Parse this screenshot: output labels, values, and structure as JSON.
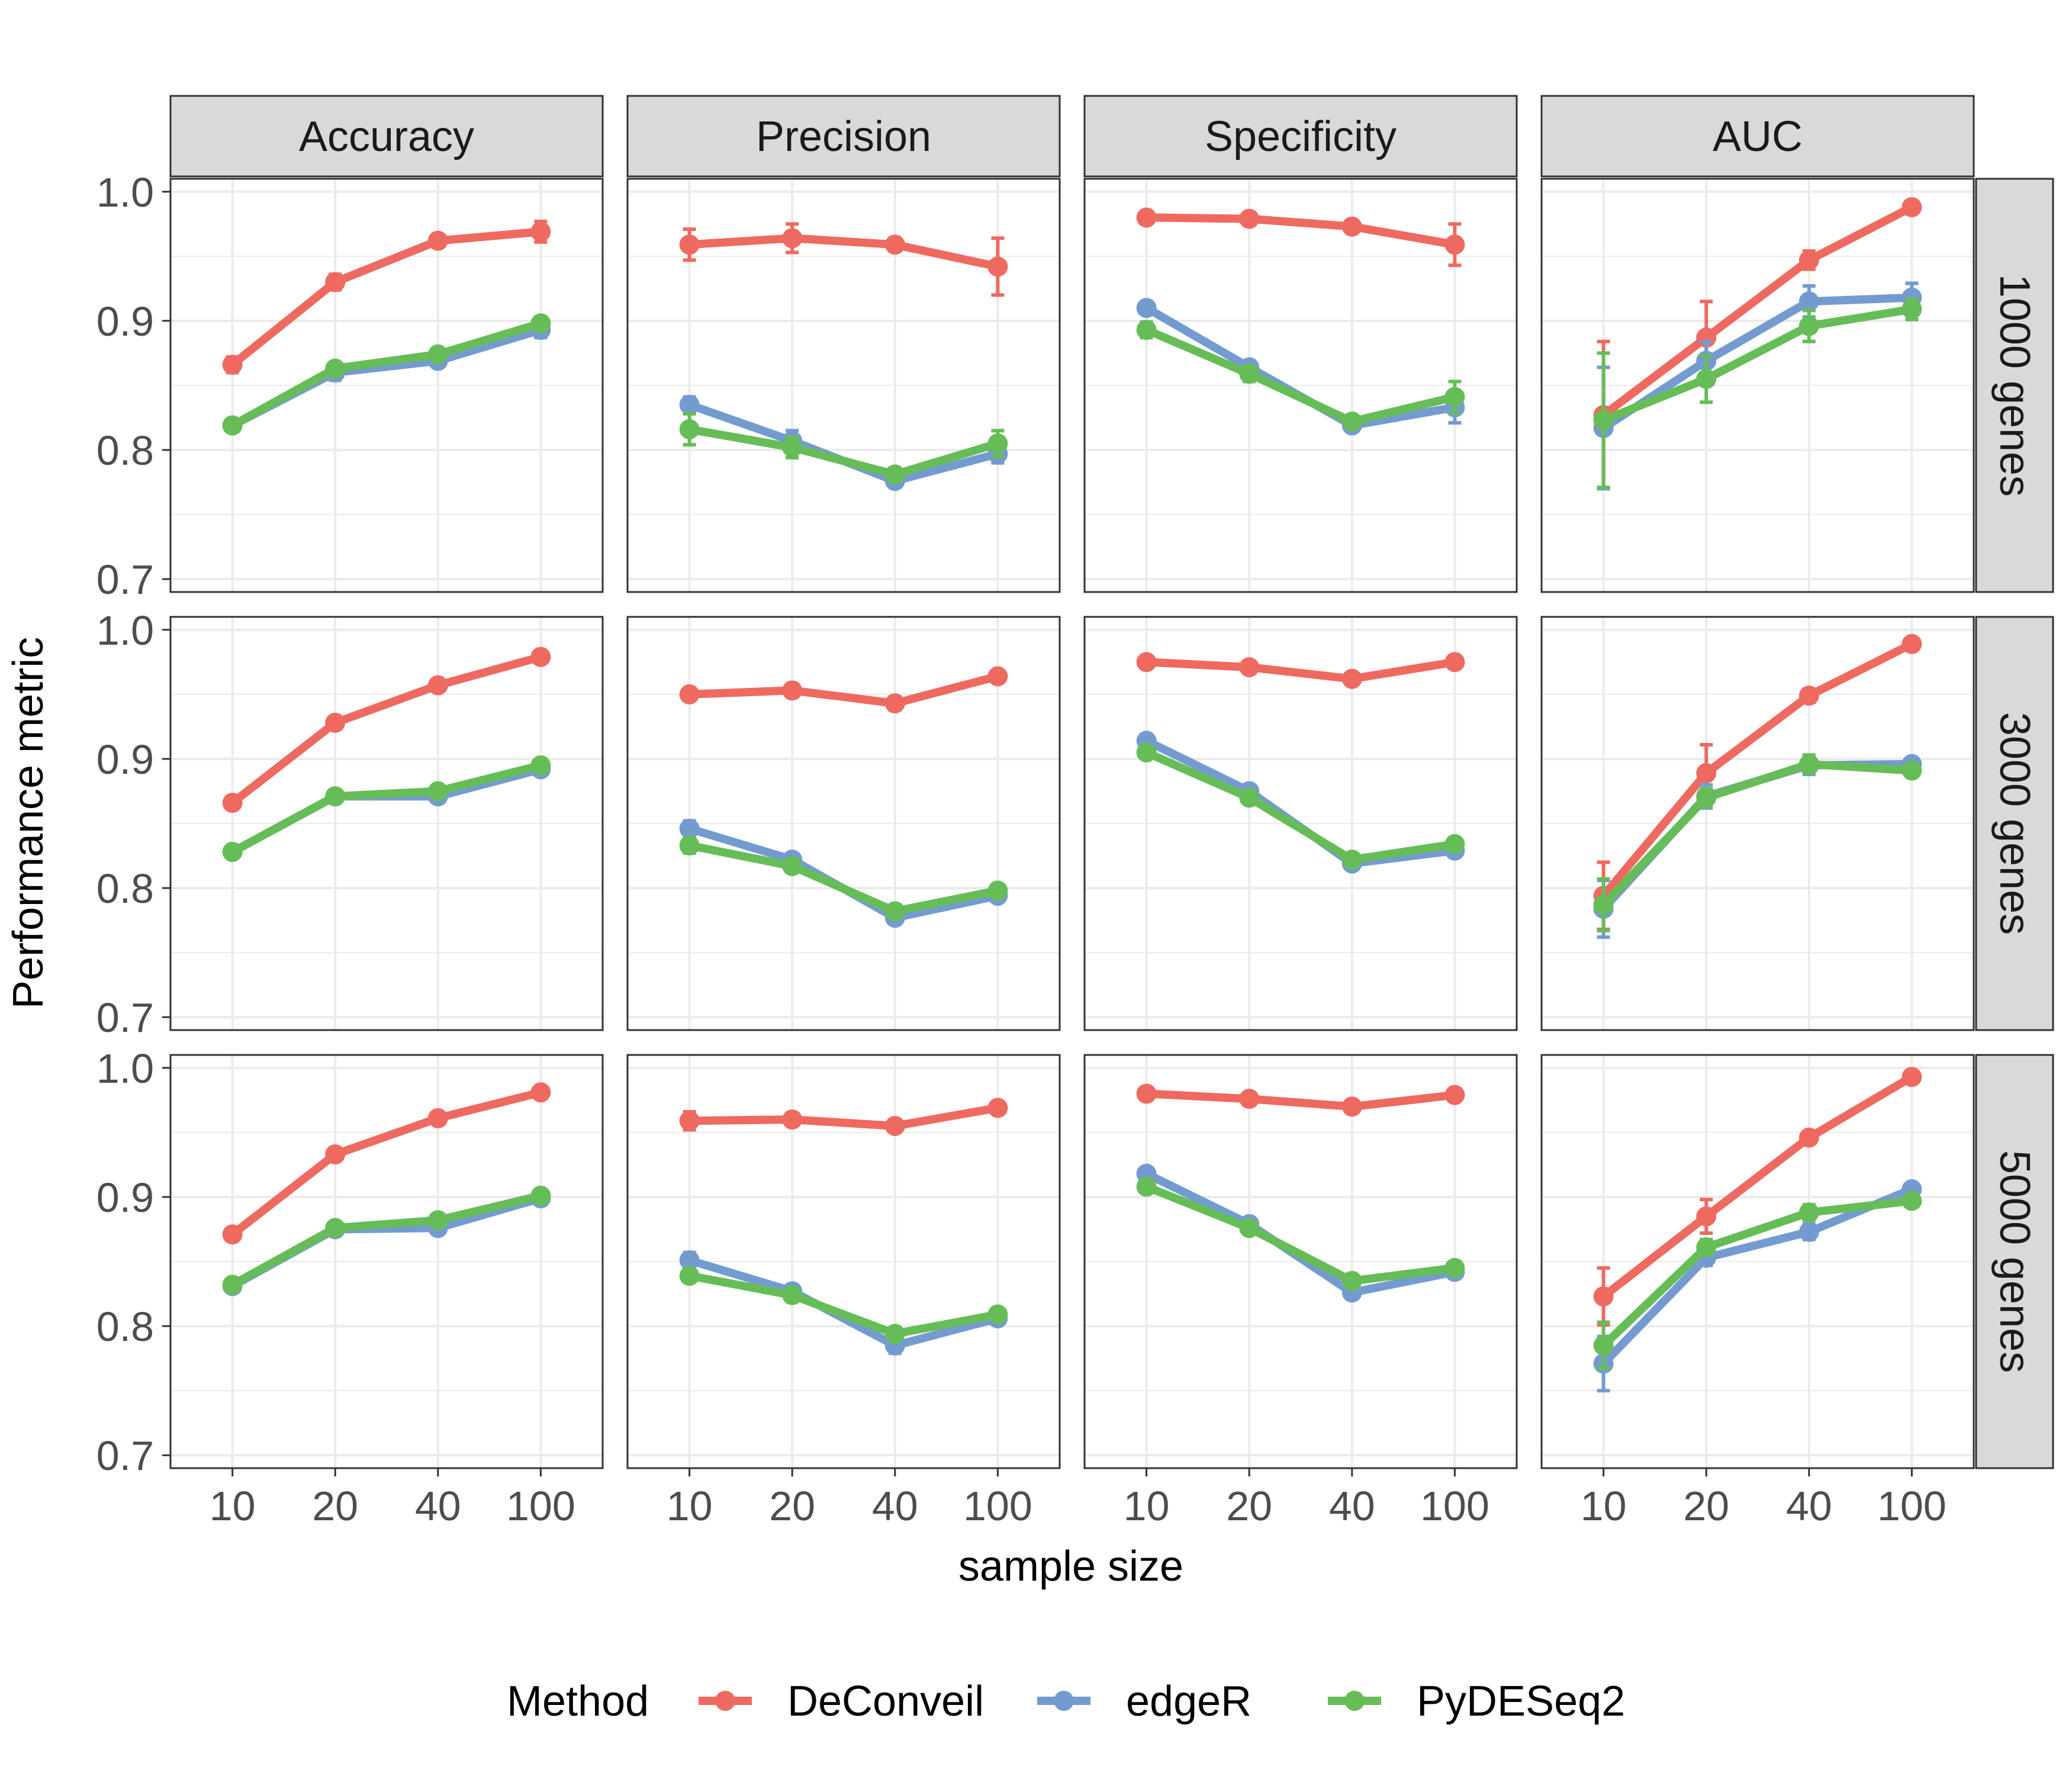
{
  "chart_data": {
    "type": "line",
    "layout": "facet-grid",
    "x": [
      "10",
      "20",
      "40",
      "100"
    ],
    "xlabel": "sample size",
    "ylabel": "Performance metric",
    "ylim": [
      0.69,
      1.01
    ],
    "yticks": [
      "0.7",
      "0.8",
      "0.9",
      "1.0"
    ],
    "ytick_values": [
      0.7,
      0.8,
      0.9,
      1.0
    ],
    "grid": true,
    "columns": [
      "Accuracy",
      "Precision",
      "Specificity",
      "AUC"
    ],
    "rows": [
      "1000 genes",
      "3000 genes",
      "5000 genes"
    ],
    "legend": {
      "title": "Method",
      "position": "bottom",
      "entries": [
        "DeConveil",
        "edgeR",
        "PyDESeq2"
      ]
    },
    "colors": {
      "DeConveil": "#EE6A60",
      "edgeR": "#739BD0",
      "PyDESeq2": "#66BD57"
    },
    "panels": [
      {
        "row": "1000 genes",
        "column": "Accuracy",
        "series": [
          {
            "name": "DeConveil",
            "values": [
              0.866,
              0.93,
              0.962,
              0.969
            ],
            "errors": [
              0.006,
              0.006,
              0.004,
              0.008
            ]
          },
          {
            "name": "edgeR",
            "values": [
              0.819,
              0.86,
              0.869,
              0.893
            ],
            "errors": [
              0.004,
              0.006,
              0.004,
              0.006
            ]
          },
          {
            "name": "PyDESeq2",
            "values": [
              0.819,
              0.863,
              0.874,
              0.898
            ],
            "errors": [
              0.004,
              0.004,
              0.004,
              0.005
            ]
          }
        ]
      },
      {
        "row": "1000 genes",
        "column": "Precision",
        "series": [
          {
            "name": "DeConveil",
            "values": [
              0.959,
              0.964,
              0.959,
              0.942
            ],
            "errors": [
              0.012,
              0.011,
              0.005,
              0.022
            ]
          },
          {
            "name": "edgeR",
            "values": [
              0.835,
              0.807,
              0.776,
              0.797
            ],
            "errors": [
              0.006,
              0.008,
              0.004,
              0.007
            ]
          },
          {
            "name": "PyDESeq2",
            "values": [
              0.816,
              0.802,
              0.781,
              0.805
            ],
            "errors": [
              0.012,
              0.008,
              0.004,
              0.01
            ]
          }
        ]
      },
      {
        "row": "1000 genes",
        "column": "Specificity",
        "series": [
          {
            "name": "DeConveil",
            "values": [
              0.98,
              0.979,
              0.973,
              0.959
            ],
            "errors": [
              0.004,
              0.004,
              0.004,
              0.016
            ]
          },
          {
            "name": "edgeR",
            "values": [
              0.91,
              0.864,
              0.819,
              0.833
            ],
            "errors": [
              0.004,
              0.005,
              0.004,
              0.012
            ]
          },
          {
            "name": "PyDESeq2",
            "values": [
              0.893,
              0.859,
              0.822,
              0.841
            ],
            "errors": [
              0.006,
              0.006,
              0.004,
              0.012
            ]
          }
        ]
      },
      {
        "row": "1000 genes",
        "column": "AUC",
        "series": [
          {
            "name": "DeConveil",
            "values": [
              0.827,
              0.887,
              0.947,
              0.988
            ],
            "errors": [
              0.057,
              0.028,
              0.007,
              0.003
            ]
          },
          {
            "name": "edgeR",
            "values": [
              0.817,
              0.869,
              0.915,
              0.918
            ],
            "errors": [
              0.047,
              0.015,
              0.012,
              0.011
            ]
          },
          {
            "name": "PyDESeq2",
            "values": [
              0.823,
              0.855,
              0.896,
              0.909
            ],
            "errors": [
              0.052,
              0.018,
              0.012,
              0.008
            ]
          }
        ]
      },
      {
        "row": "3000 genes",
        "column": "Accuracy",
        "series": [
          {
            "name": "DeConveil",
            "values": [
              0.866,
              0.928,
              0.957,
              0.979
            ],
            "errors": [
              0.003,
              0.003,
              0.003,
              0.003
            ]
          },
          {
            "name": "edgeR",
            "values": [
              0.828,
              0.871,
              0.871,
              0.892
            ],
            "errors": [
              0.003,
              0.003,
              0.003,
              0.003
            ]
          },
          {
            "name": "PyDESeq2",
            "values": [
              0.828,
              0.871,
              0.875,
              0.895
            ],
            "errors": [
              0.003,
              0.003,
              0.003,
              0.003
            ]
          }
        ]
      },
      {
        "row": "3000 genes",
        "column": "Precision",
        "series": [
          {
            "name": "DeConveil",
            "values": [
              0.95,
              0.953,
              0.943,
              0.964
            ],
            "errors": [
              0.003,
              0.005,
              0.005,
              0.003
            ]
          },
          {
            "name": "edgeR",
            "values": [
              0.846,
              0.822,
              0.777,
              0.794
            ],
            "errors": [
              0.006,
              0.004,
              0.004,
              0.004
            ]
          },
          {
            "name": "PyDESeq2",
            "values": [
              0.833,
              0.817,
              0.782,
              0.798
            ],
            "errors": [
              0.006,
              0.004,
              0.004,
              0.004
            ]
          }
        ]
      },
      {
        "row": "3000 genes",
        "column": "Specificity",
        "series": [
          {
            "name": "DeConveil",
            "values": [
              0.975,
              0.971,
              0.962,
              0.975
            ],
            "errors": [
              0.002,
              0.002,
              0.002,
              0.002
            ]
          },
          {
            "name": "edgeR",
            "values": [
              0.914,
              0.875,
              0.819,
              0.829
            ],
            "errors": [
              0.004,
              0.003,
              0.004,
              0.003
            ]
          },
          {
            "name": "PyDESeq2",
            "values": [
              0.905,
              0.87,
              0.822,
              0.834
            ],
            "errors": [
              0.004,
              0.003,
              0.004,
              0.003
            ]
          }
        ]
      },
      {
        "row": "3000 genes",
        "column": "AUC",
        "series": [
          {
            "name": "DeConveil",
            "values": [
              0.794,
              0.889,
              0.949,
              0.989
            ],
            "errors": [
              0.026,
              0.022,
              0.005,
              0.002
            ]
          },
          {
            "name": "edgeR",
            "values": [
              0.784,
              0.871,
              0.895,
              0.896
            ],
            "errors": [
              0.022,
              0.009,
              0.007,
              0.004
            ]
          },
          {
            "name": "PyDESeq2",
            "values": [
              0.787,
              0.87,
              0.896,
              0.891
            ],
            "errors": [
              0.02,
              0.007,
              0.007,
              0.004
            ]
          }
        ]
      },
      {
        "row": "5000 genes",
        "column": "Accuracy",
        "series": [
          {
            "name": "DeConveil",
            "values": [
              0.871,
              0.933,
              0.961,
              0.981
            ],
            "errors": [
              0.002,
              0.002,
              0.002,
              0.002
            ]
          },
          {
            "name": "edgeR",
            "values": [
              0.831,
              0.875,
              0.876,
              0.899
            ],
            "errors": [
              0.002,
              0.002,
              0.002,
              0.002
            ]
          },
          {
            "name": "PyDESeq2",
            "values": [
              0.832,
              0.876,
              0.882,
              0.901
            ],
            "errors": [
              0.002,
              0.002,
              0.002,
              0.002
            ]
          }
        ]
      },
      {
        "row": "5000 genes",
        "column": "Precision",
        "series": [
          {
            "name": "DeConveil",
            "values": [
              0.959,
              0.96,
              0.955,
              0.969
            ],
            "errors": [
              0.007,
              0.003,
              0.003,
              0.003
            ]
          },
          {
            "name": "edgeR",
            "values": [
              0.851,
              0.827,
              0.785,
              0.806
            ],
            "errors": [
              0.006,
              0.004,
              0.006,
              0.003
            ]
          },
          {
            "name": "PyDESeq2",
            "values": [
              0.839,
              0.824,
              0.794,
              0.809
            ],
            "errors": [
              0.004,
              0.004,
              0.004,
              0.003
            ]
          }
        ]
      },
      {
        "row": "5000 genes",
        "column": "Specificity",
        "series": [
          {
            "name": "DeConveil",
            "values": [
              0.98,
              0.976,
              0.97,
              0.979
            ],
            "errors": [
              0.002,
              0.002,
              0.002,
              0.002
            ]
          },
          {
            "name": "edgeR",
            "values": [
              0.918,
              0.879,
              0.826,
              0.842
            ],
            "errors": [
              0.003,
              0.003,
              0.003,
              0.002
            ]
          },
          {
            "name": "PyDESeq2",
            "values": [
              0.908,
              0.876,
              0.835,
              0.845
            ],
            "errors": [
              0.003,
              0.003,
              0.003,
              0.002
            ]
          }
        ]
      },
      {
        "row": "5000 genes",
        "column": "AUC",
        "series": [
          {
            "name": "DeConveil",
            "values": [
              0.823,
              0.885,
              0.946,
              0.993
            ],
            "errors": [
              0.022,
              0.013,
              0.004,
              0.002
            ]
          },
          {
            "name": "edgeR",
            "values": [
              0.771,
              0.853,
              0.873,
              0.906
            ],
            "errors": [
              0.021,
              0.006,
              0.006,
              0.003
            ]
          },
          {
            "name": "PyDESeq2",
            "values": [
              0.785,
              0.861,
              0.888,
              0.897
            ],
            "errors": [
              0.018,
              0.006,
              0.006,
              0.003
            ]
          }
        ]
      }
    ]
  }
}
